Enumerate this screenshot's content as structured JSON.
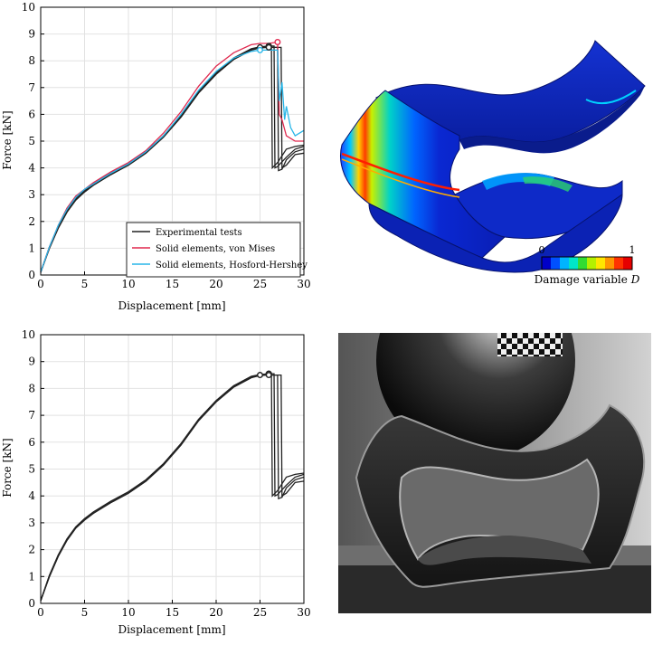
{
  "chart_data": [
    {
      "type": "line",
      "title": "",
      "xlabel": "Displacement [mm]",
      "ylabel": "Force [kN]",
      "xlim": [
        0,
        30
      ],
      "ylim": [
        0,
        10
      ],
      "xticks": [
        0,
        5,
        10,
        15,
        20,
        25,
        30
      ],
      "yticks": [
        0,
        1,
        2,
        3,
        4,
        5,
        6,
        7,
        8,
        9,
        10
      ],
      "grid": true,
      "legend": "bottom-right",
      "series": [
        {
          "name": "Experimental tests",
          "color": "#222222",
          "x": [
            0,
            1,
            2,
            3,
            4,
            5,
            6,
            8,
            10,
            12,
            14,
            16,
            18,
            20,
            22,
            24,
            25,
            26,
            26.3,
            26.4,
            27,
            28,
            29,
            30
          ],
          "y": [
            0.1,
            1.0,
            1.75,
            2.35,
            2.8,
            3.1,
            3.35,
            3.75,
            4.1,
            4.55,
            5.15,
            5.9,
            6.8,
            7.5,
            8.05,
            8.4,
            8.5,
            8.55,
            8.55,
            4.0,
            4.2,
            4.7,
            4.8,
            4.85
          ]
        },
        {
          "name": "Experimental tests",
          "color": "#222222",
          "x": [
            0,
            1,
            2,
            3,
            4,
            5,
            6,
            8,
            10,
            12,
            14,
            16,
            18,
            20,
            22,
            24,
            25,
            26,
            26.6,
            26.7,
            27,
            28,
            29,
            30
          ],
          "y": [
            0.1,
            1.05,
            1.8,
            2.4,
            2.85,
            3.15,
            3.4,
            3.8,
            4.15,
            4.6,
            5.2,
            5.95,
            6.85,
            7.55,
            8.1,
            8.45,
            8.52,
            8.55,
            8.55,
            4.0,
            4.05,
            4.4,
            4.7,
            4.8
          ]
        },
        {
          "name": "Experimental tests",
          "color": "#222222",
          "x": [
            0,
            1,
            2,
            3,
            4,
            5,
            6,
            8,
            10,
            12,
            14,
            16,
            18,
            20,
            22,
            24,
            25,
            26,
            27,
            27.1,
            27.5,
            28,
            29,
            30
          ],
          "y": [
            0.1,
            1.0,
            1.75,
            2.35,
            2.8,
            3.1,
            3.35,
            3.75,
            4.1,
            4.55,
            5.15,
            5.9,
            6.8,
            7.5,
            8.05,
            8.4,
            8.48,
            8.5,
            8.5,
            3.9,
            3.95,
            4.3,
            4.6,
            4.7
          ]
        },
        {
          "name": "Experimental tests",
          "color": "#222222",
          "x": [
            0,
            1,
            2,
            3,
            4,
            5,
            6,
            8,
            10,
            12,
            14,
            16,
            18,
            20,
            22,
            24,
            25,
            26,
            27.4,
            27.5,
            28,
            29,
            30
          ],
          "y": [
            0.1,
            1.05,
            1.8,
            2.4,
            2.85,
            3.15,
            3.4,
            3.8,
            4.15,
            4.6,
            5.2,
            5.95,
            6.85,
            7.55,
            8.1,
            8.42,
            8.5,
            8.5,
            8.5,
            4.0,
            4.1,
            4.5,
            4.55
          ]
        },
        {
          "name": "Solid elements, von Mises",
          "color": "#e0294f",
          "x": [
            0,
            1,
            2,
            3,
            4,
            5,
            6,
            8,
            10,
            12,
            14,
            16,
            18,
            20,
            22,
            24,
            25,
            26,
            27,
            27.2,
            27.5,
            28,
            29,
            30
          ],
          "y": [
            0.1,
            1.05,
            1.85,
            2.5,
            2.95,
            3.2,
            3.45,
            3.85,
            4.2,
            4.65,
            5.3,
            6.1,
            7.05,
            7.8,
            8.3,
            8.6,
            8.65,
            8.65,
            8.7,
            6.0,
            5.8,
            5.2,
            5.0,
            5.0
          ]
        },
        {
          "name": "Solid elements, Hosford-Hershey",
          "color": "#29b6e8",
          "x": [
            0,
            1,
            2,
            3,
            4,
            5,
            6,
            8,
            10,
            12,
            14,
            16,
            18,
            20,
            22,
            24,
            25,
            26,
            27,
            27.2,
            27.5,
            27.8,
            28,
            28.5,
            29,
            30
          ],
          "y": [
            0.1,
            1.05,
            1.85,
            2.45,
            2.9,
            3.2,
            3.4,
            3.8,
            4.15,
            4.6,
            5.2,
            6.0,
            6.9,
            7.6,
            8.1,
            8.35,
            8.4,
            8.4,
            8.4,
            6.5,
            7.2,
            5.8,
            6.3,
            5.5,
            5.2,
            5.4
          ]
        }
      ]
    },
    {
      "type": "line",
      "title": "",
      "xlabel": "Displacement [mm]",
      "ylabel": "Force [kN]",
      "xlim": [
        0,
        30
      ],
      "ylim": [
        0,
        10
      ],
      "xticks": [
        0,
        5,
        10,
        15,
        20,
        25,
        30
      ],
      "yticks": [
        0,
        1,
        2,
        3,
        4,
        5,
        6,
        7,
        8,
        9,
        10
      ],
      "grid": true,
      "series": [
        {
          "color": "#222222",
          "x": [
            0,
            1,
            2,
            3,
            4,
            5,
            6,
            8,
            10,
            12,
            14,
            16,
            18,
            20,
            22,
            24,
            25,
            26,
            26.3,
            26.4,
            27,
            28,
            29,
            30
          ],
          "y": [
            0.1,
            1.0,
            1.75,
            2.35,
            2.8,
            3.1,
            3.35,
            3.75,
            4.1,
            4.55,
            5.15,
            5.9,
            6.8,
            7.5,
            8.05,
            8.4,
            8.5,
            8.55,
            8.55,
            4.0,
            4.2,
            4.7,
            4.8,
            4.85
          ]
        },
        {
          "color": "#222222",
          "x": [
            0,
            1,
            2,
            3,
            4,
            5,
            6,
            8,
            10,
            12,
            14,
            16,
            18,
            20,
            22,
            24,
            25,
            26,
            26.6,
            26.7,
            27,
            28,
            29,
            30
          ],
          "y": [
            0.1,
            1.05,
            1.8,
            2.4,
            2.85,
            3.15,
            3.4,
            3.8,
            4.15,
            4.6,
            5.2,
            5.95,
            6.85,
            7.55,
            8.1,
            8.45,
            8.52,
            8.55,
            8.55,
            4.0,
            4.05,
            4.4,
            4.7,
            4.8
          ]
        },
        {
          "color": "#222222",
          "x": [
            0,
            1,
            2,
            3,
            4,
            5,
            6,
            8,
            10,
            12,
            14,
            16,
            18,
            20,
            22,
            24,
            25,
            26,
            27,
            27.1,
            27.5,
            28,
            29,
            30
          ],
          "y": [
            0.1,
            1.0,
            1.75,
            2.35,
            2.8,
            3.1,
            3.35,
            3.75,
            4.1,
            4.55,
            5.15,
            5.9,
            6.8,
            7.5,
            8.05,
            8.4,
            8.48,
            8.5,
            8.5,
            3.9,
            3.95,
            4.3,
            4.6,
            4.7
          ]
        },
        {
          "color": "#222222",
          "x": [
            0,
            1,
            2,
            3,
            4,
            5,
            6,
            8,
            10,
            12,
            14,
            16,
            18,
            20,
            22,
            24,
            25,
            26,
            27.4,
            27.5,
            28,
            29,
            30
          ],
          "y": [
            0.1,
            1.05,
            1.8,
            2.4,
            2.85,
            3.15,
            3.4,
            3.8,
            4.15,
            4.6,
            5.2,
            5.95,
            6.85,
            7.55,
            8.1,
            8.42,
            8.5,
            8.5,
            8.5,
            4.0,
            4.1,
            4.5,
            4.55
          ]
        }
      ]
    }
  ],
  "fem": {
    "colorbar_min": "0",
    "colorbar_max": "1",
    "colorbar_label": "Damage variable",
    "colorbar_symbol": "D",
    "colormap": [
      "#0000c8",
      "#0050ff",
      "#00b4ff",
      "#00e6c8",
      "#32dc32",
      "#b4f000",
      "#ffe600",
      "#ff9600",
      "#ff3200",
      "#e60000"
    ]
  }
}
